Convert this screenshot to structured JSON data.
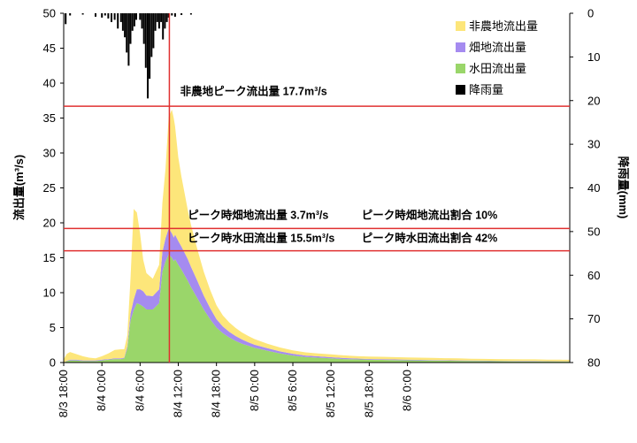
{
  "chart_data": {
    "type": "area",
    "x_unit": "hours",
    "x": [
      0,
      0.5,
      1,
      2,
      3,
      4,
      5,
      6,
      7,
      8,
      9,
      9.5,
      10,
      10.5,
      11,
      11.5,
      12,
      12.5,
      13,
      14,
      15,
      15.5,
      16,
      16.5,
      17,
      17.3,
      17.5,
      18,
      18.5,
      19,
      19.5,
      20,
      21,
      22,
      23,
      24,
      25,
      26,
      27,
      28,
      29,
      30,
      32,
      34,
      36,
      38,
      40,
      42,
      44,
      46,
      48,
      50,
      52,
      54,
      56,
      58,
      60,
      62,
      64,
      66,
      68,
      70,
      72,
      74,
      76,
      78,
      79.5
    ],
    "x_ticks": [
      {
        "x": 0,
        "label": "8/3 18:00"
      },
      {
        "x": 6,
        "label": "8/4 0:00"
      },
      {
        "x": 12,
        "label": "8/4 6:00"
      },
      {
        "x": 18,
        "label": "8/4 12:00"
      },
      {
        "x": 24,
        "label": "8/4 18:00"
      },
      {
        "x": 30,
        "label": "8/5 0:00"
      },
      {
        "x": 36,
        "label": "8/5 6:00"
      },
      {
        "x": 42,
        "label": "8/5 12:00"
      },
      {
        "x": 48,
        "label": "8/5 18:00"
      },
      {
        "x": 54,
        "label": "8/6 0:00"
      }
    ],
    "series": [
      {
        "name": "水田流出量",
        "color": "#9ad66a",
        "values": [
          0,
          0.2,
          0.3,
          0.3,
          0.2,
          0.2,
          0.2,
          0.3,
          0.4,
          0.5,
          0.5,
          0.6,
          2,
          6,
          7.5,
          8.5,
          8.3,
          8,
          7.6,
          7.6,
          8.5,
          13,
          14.5,
          15.5,
          15,
          14.5,
          14.8,
          14,
          13.3,
          12.5,
          11.7,
          10.8,
          9.2,
          7.6,
          6.2,
          5,
          4.2,
          3.6,
          3.1,
          2.7,
          2.4,
          2.1,
          1.7,
          1.3,
          1.0,
          0.8,
          0.7,
          0.6,
          0.5,
          0.45,
          0.4,
          0.38,
          0.35,
          0.32,
          0.3,
          0.28,
          0.26,
          0.24,
          0.22,
          0.2,
          0.19,
          0.18,
          0.17,
          0.16,
          0.15,
          0.14,
          0.13
        ]
      },
      {
        "name": "畑地流出量",
        "color": "#a58bf0",
        "values": [
          0,
          0.05,
          0.1,
          0.1,
          0.1,
          0.1,
          0.1,
          0.1,
          0.1,
          0.1,
          0.1,
          0.1,
          0.3,
          1,
          1.5,
          2.0,
          2.2,
          2.2,
          2.0,
          1.9,
          2.0,
          2.8,
          3.3,
          3.7,
          3.5,
          3.4,
          3.5,
          3.4,
          3.3,
          3.2,
          3.1,
          2.9,
          2.5,
          2.0,
          1.6,
          1.2,
          0.95,
          0.8,
          0.7,
          0.6,
          0.5,
          0.45,
          0.35,
          0.3,
          0.25,
          0.2,
          0.18,
          0.16,
          0.14,
          0.12,
          0.11,
          0.1,
          0.09,
          0.09,
          0.08,
          0.08,
          0.07,
          0.07,
          0.06,
          0.06,
          0.05,
          0.05,
          0.05,
          0.05,
          0.04,
          0.04,
          0.04
        ]
      },
      {
        "name": "非農地流出量",
        "color": "#fde67a",
        "values": [
          0.5,
          1.0,
          1.1,
          0.8,
          0.6,
          0.4,
          0.3,
          0.5,
          0.8,
          1.2,
          1.3,
          1.2,
          1.6,
          5,
          13,
          11,
          8,
          4.5,
          3.2,
          2.5,
          3.5,
          7,
          10,
          16,
          17.7,
          17,
          15.5,
          12,
          10,
          8.5,
          7,
          6.0,
          4.5,
          3.4,
          2.6,
          2.0,
          1.6,
          1.35,
          1.15,
          1.0,
          0.9,
          0.8,
          0.65,
          0.55,
          0.5,
          0.45,
          0.42,
          0.4,
          0.38,
          0.36,
          0.35,
          0.34,
          0.33,
          0.32,
          0.31,
          0.3,
          0.29,
          0.28,
          0.27,
          0.26,
          0.25,
          0.25,
          0.24,
          0.24,
          0.23,
          0.23,
          0.22
        ]
      }
    ],
    "rainfall": {
      "name": "降雨量",
      "color": "#000000",
      "unit": "mm",
      "bars": [
        {
          "x": 0.3,
          "mm": 2.5
        },
        {
          "x": 1.0,
          "mm": 0.5
        },
        {
          "x": 3.0,
          "mm": 0.3
        },
        {
          "x": 5.0,
          "mm": 0.8
        },
        {
          "x": 6.0,
          "mm": 1.0
        },
        {
          "x": 6.5,
          "mm": 0.5
        },
        {
          "x": 7.0,
          "mm": 1.2
        },
        {
          "x": 7.5,
          "mm": 2.0
        },
        {
          "x": 8.0,
          "mm": 1.5
        },
        {
          "x": 8.5,
          "mm": 3.5
        },
        {
          "x": 9.0,
          "mm": 2.0
        },
        {
          "x": 9.3,
          "mm": 4.0
        },
        {
          "x": 9.6,
          "mm": 5.5
        },
        {
          "x": 9.9,
          "mm": 9.0
        },
        {
          "x": 10.2,
          "mm": 12.0
        },
        {
          "x": 10.5,
          "mm": 7.0
        },
        {
          "x": 10.8,
          "mm": 4.0
        },
        {
          "x": 11.1,
          "mm": 3.0
        },
        {
          "x": 11.4,
          "mm": 1.5
        },
        {
          "x": 12.0,
          "mm": 1.5
        },
        {
          "x": 12.3,
          "mm": 3.5
        },
        {
          "x": 12.6,
          "mm": 7.0
        },
        {
          "x": 12.9,
          "mm": 12.5
        },
        {
          "x": 13.2,
          "mm": 19.5
        },
        {
          "x": 13.5,
          "mm": 15.0
        },
        {
          "x": 13.8,
          "mm": 10.0
        },
        {
          "x": 14.1,
          "mm": 8.0
        },
        {
          "x": 14.4,
          "mm": 4.0
        },
        {
          "x": 14.7,
          "mm": 2.0
        },
        {
          "x": 15.0,
          "mm": 3.5
        },
        {
          "x": 15.3,
          "mm": 2.0
        },
        {
          "x": 15.6,
          "mm": 6.0
        },
        {
          "x": 15.9,
          "mm": 3.5
        },
        {
          "x": 16.2,
          "mm": 2.0
        },
        {
          "x": 16.5,
          "mm": 1.0
        },
        {
          "x": 17.0,
          "mm": 0.5
        },
        {
          "x": 17.5,
          "mm": 0.8
        },
        {
          "x": 18.5,
          "mm": 0.4
        },
        {
          "x": 20.0,
          "mm": 0.3
        }
      ]
    },
    "peak_x": 16.6,
    "hlines": [
      {
        "y": 36.7,
        "color": "#e03030"
      },
      {
        "y": 19.2,
        "color": "#e03030"
      },
      {
        "y": 16.0,
        "color": "#e03030"
      }
    ],
    "annotations": [
      {
        "text": "非農地ピーク流出量  17.7m³/s",
        "x": 18.3,
        "y": 38.3
      },
      {
        "text": "ピーク時畑地流出量    3.7m³/s",
        "x": 19.5,
        "y": 20.6
      },
      {
        "text": "ピーク時畑地流出割合   10%",
        "x": 46.8,
        "y": 20.6
      },
      {
        "text": "ピーク時水田流出量   15.5m³/s",
        "x": 19.5,
        "y": 17.3
      },
      {
        "text": "ピーク時水田流出割合   42%",
        "x": 46.8,
        "y": 17.3
      }
    ],
    "ylabel": "流出量(m³/s)",
    "y2label": "降雨量(mm)",
    "ylim": [
      0,
      50
    ],
    "y2lim": [
      0,
      80
    ],
    "xlim": [
      0,
      79.5
    ],
    "y_ticks": [
      0,
      5,
      10,
      15,
      20,
      25,
      30,
      35,
      40,
      45,
      50
    ],
    "y2_ticks": [
      0,
      10,
      20,
      30,
      40,
      50,
      60,
      70,
      80
    ],
    "legend_position": "top-right",
    "legend": [
      {
        "label": "非農地流出量",
        "color": "#fde67a"
      },
      {
        "label": "畑地流出量",
        "color": "#a58bf0"
      },
      {
        "label": "水田流出量",
        "color": "#9ad66a"
      },
      {
        "label": "降雨量",
        "color": "#000000"
      }
    ],
    "grid": false
  }
}
